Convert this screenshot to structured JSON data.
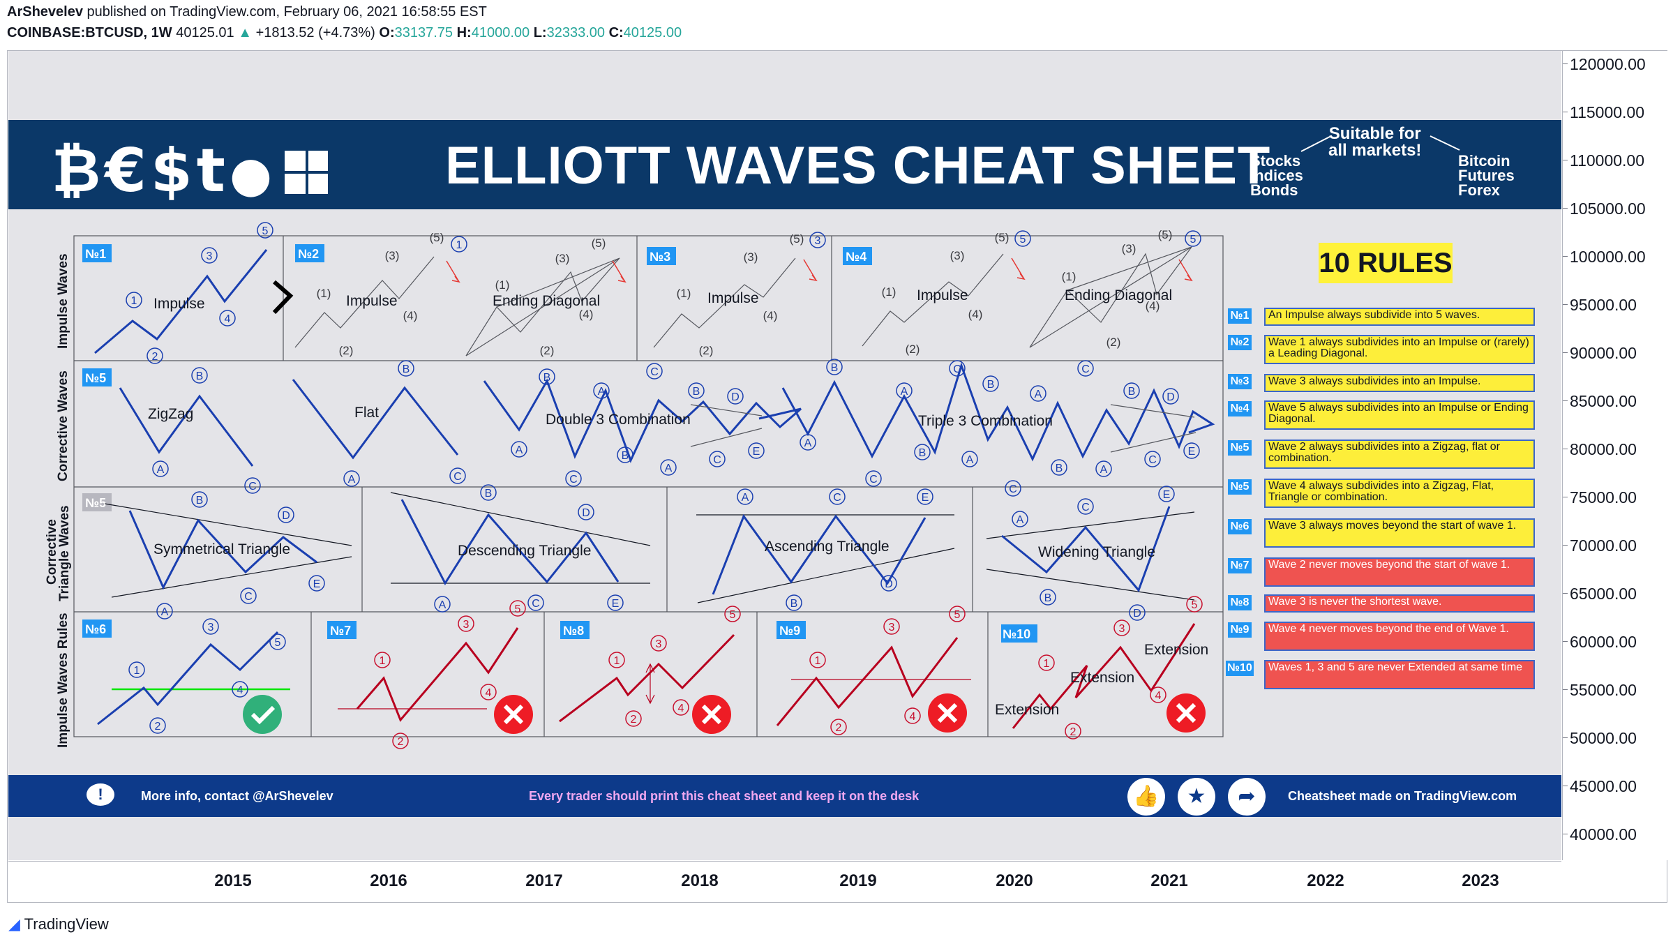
{
  "header": {
    "author": "ArShevelev",
    "published": "published on TradingView.com, February 06, 2021 16:58:55 EST",
    "symbol": "COINBASE:BTCUSD, 1W",
    "last": "40125.01",
    "change": "+1813.52 (+4.73%)",
    "o_label": "O:",
    "o": "33137.75",
    "h_label": "H:",
    "h": "41000.00",
    "l_label": "L:",
    "l": "32333.00",
    "c_label": "C:",
    "c": "40125.00"
  },
  "banner": {
    "logo": "₿€$t",
    "title": "ELLIOTT WAVES CHEAT SHEET",
    "markets_left": [
      "Stocks",
      "Indices",
      "Bonds"
    ],
    "suitable": [
      "Suitable for",
      "all markets!"
    ],
    "markets_right": [
      "Bitcoin",
      "Futures",
      "Forex"
    ]
  },
  "section_labels": {
    "impulse": "Impulse Waves",
    "corrective": "Corrective Waves",
    "triangle": [
      "Corrective",
      "Triangle Waves"
    ],
    "rules": "Impulse Waves Rules"
  },
  "patterns": {
    "impulse": "Impulse",
    "ending_diagonal": "Ending Diagonal",
    "zigzag": "ZigZag",
    "flat": "Flat",
    "double3": "Double 3 Combination",
    "triple3": "Triple 3 Combination",
    "symmetrical": "Symmetrical Triangle",
    "descending": "Descending Triangle",
    "ascending": "Ascending Triangle",
    "widening": "Widening Triangle",
    "extension": "Extension"
  },
  "panel_numbers": [
    "№1",
    "№2",
    "№3",
    "№4",
    "№5",
    "№5",
    "№6",
    "№7",
    "№8",
    "№9",
    "№10"
  ],
  "rules": {
    "title": "10 RULES",
    "items": [
      {
        "num": "№1",
        "text": "An Impulse always subdivide into 5 waves.",
        "kind": "y"
      },
      {
        "num": "№2",
        "text": "Wave 1 always subdivides into an Impulse or (rarely) a Leading Diagonal.",
        "kind": "y"
      },
      {
        "num": "№3",
        "text": "Wave 3 always subdivides into an Impulse.",
        "kind": "y"
      },
      {
        "num": "№4",
        "text": "Wave 5 always subdivides into an Impulse or Ending Diagonal.",
        "kind": "y"
      },
      {
        "num": "№5",
        "text": "Wave 2 always subdivides into a Zigzag, flat or combination.",
        "kind": "y"
      },
      {
        "num": "№5",
        "text": "Wave 4 always subdivides into a Zigzag, Flat, Triangle or combination.",
        "kind": "y"
      },
      {
        "num": "№6",
        "text": "Wave 3 always moves beyond the start of wave 1.",
        "kind": "y"
      },
      {
        "num": "№7",
        "text": "Wave 2 never moves beyond the start of wave 1.",
        "kind": "r"
      },
      {
        "num": "№8",
        "text": "Wave 3 is never the shortest wave.",
        "kind": "r"
      },
      {
        "num": "№9",
        "text": "Wave 4 never moves beyond the end of Wave 1.",
        "kind": "r"
      },
      {
        "num": "№10",
        "text": "Waves 1, 3 and 5 are never Extended at same time",
        "kind": "r"
      }
    ]
  },
  "footer": {
    "contact": "More info, contact @ArShevelev",
    "slogan": "Every trader should print this cheat sheet and keep it on the desk",
    "made": "Cheatsheet made on TradingView.com"
  },
  "brand": "TradingView",
  "colors": {
    "navy": "#0b3868",
    "blue": "#1a3fb0",
    "red": "#c8102e",
    "yellow": "#fdee3a",
    "green": "#00e600",
    "plot_bg": "#e4e4e8"
  },
  "chart_data": {
    "type": "line",
    "title": "COINBASE:BTCUSD, 1W",
    "y_axis": {
      "ticks": [
        "120000.00",
        "115000.00",
        "110000.00",
        "105000.00",
        "100000.00",
        "95000.00",
        "90000.00",
        "85000.00",
        "80000.00",
        "75000.00",
        "70000.00",
        "65000.00",
        "60000.00",
        "55000.00",
        "50000.00",
        "45000.00",
        "40000.00"
      ]
    },
    "x_axis": {
      "ticks": [
        "2015",
        "2016",
        "2017",
        "2018",
        "2019",
        "2020",
        "2021",
        "2022",
        "2023"
      ]
    },
    "series": [],
    "grid": false
  }
}
